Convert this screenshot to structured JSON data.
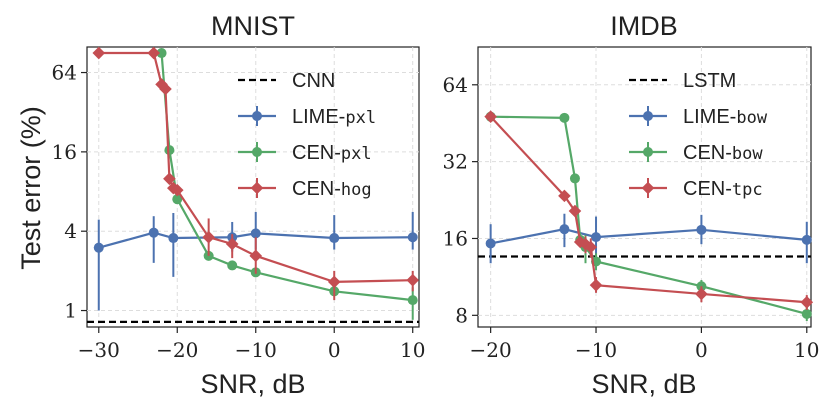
{
  "figure": {
    "ylabel_shared": "Test error (%)"
  },
  "chart_data": [
    {
      "type": "line",
      "title": "MNIST",
      "xlabel": "SNR, dB",
      "ylabel": "Test error (%)",
      "yscale": "log2",
      "xlim": [
        -31.5,
        10.8
      ],
      "ylim": [
        0.75,
        100
      ],
      "xticks": [
        -30,
        -20,
        -10,
        0,
        10
      ],
      "xtick_labels": [
        "−30",
        "−20",
        "−10",
        "0",
        "10"
      ],
      "yticks": [
        1,
        4,
        16,
        64
      ],
      "ytick_labels": [
        "1",
        "4",
        "16",
        "64"
      ],
      "grid": true,
      "legend_position": "top-right",
      "baseline": {
        "name": "CNN",
        "value": 0.82,
        "style": "dashed",
        "color": "#000000"
      },
      "series": [
        {
          "name_main": "LIME-",
          "name_code": "pxl",
          "color": "#4c72b0",
          "marker": "circle",
          "x": [
            -30,
            -23,
            -20.5,
            -13,
            -10,
            0,
            10
          ],
          "y": [
            3.0,
            3.9,
            3.55,
            3.6,
            3.85,
            3.55,
            3.6
          ],
          "err_low": [
            1.0,
            2.3,
            1.8,
            2.8,
            2.9,
            2.9,
            2.9
          ],
          "err_high": [
            4.9,
            5.2,
            5.5,
            4.7,
            5.6,
            5.3,
            5.6
          ]
        },
        {
          "name_main": "CEN-",
          "name_code": "pxl",
          "color": "#55a868",
          "marker": "circle",
          "x": [
            -22,
            -21,
            -20,
            -16,
            -13,
            -10,
            0,
            10
          ],
          "y": [
            90,
            16.5,
            7.0,
            2.6,
            2.2,
            1.95,
            1.4,
            1.2
          ],
          "err_low": [
            88,
            16,
            6.6,
            2.5,
            2.1,
            1.85,
            1.3,
            0.85
          ],
          "err_high": [
            92,
            17,
            7.4,
            2.8,
            2.3,
            2.05,
            1.5,
            1.5
          ]
        },
        {
          "name_main": "CEN-",
          "name_code": "hog",
          "color": "#c44e52",
          "marker": "diamond",
          "x": [
            -30,
            -23,
            -22,
            -21.5,
            -21,
            -20.5,
            -20,
            -16,
            -13,
            -10,
            0,
            10
          ],
          "y": [
            90,
            90,
            52,
            48,
            10.0,
            8.5,
            8.2,
            3.6,
            3.2,
            2.6,
            1.65,
            1.7
          ],
          "err_low": [
            null,
            null,
            null,
            null,
            null,
            null,
            null,
            2.6,
            2.5,
            1.9,
            1.2,
            1.4
          ],
          "err_high": [
            null,
            null,
            null,
            null,
            null,
            null,
            null,
            5.0,
            3.8,
            3.6,
            2.0,
            2.0
          ]
        }
      ]
    },
    {
      "type": "line",
      "title": "IMDB",
      "xlabel": "SNR, dB",
      "ylabel": "",
      "yscale": "log2",
      "xlim": [
        -21.2,
        10.4
      ],
      "ylim": [
        7.2,
        90
      ],
      "xticks": [
        -20,
        -10,
        0,
        10
      ],
      "xtick_labels": [
        "−20",
        "−10",
        "0",
        "10"
      ],
      "yticks": [
        8,
        16,
        32,
        64
      ],
      "ytick_labels": [
        "8",
        "16",
        "32",
        "64"
      ],
      "grid": true,
      "legend_position": "top-right",
      "baseline": {
        "name": "LSTM",
        "value": 13.6,
        "style": "dashed",
        "color": "#000000"
      },
      "series": [
        {
          "name_main": "LIME-",
          "name_code": "bow",
          "color": "#4c72b0",
          "marker": "circle",
          "x": [
            -20,
            -13,
            -10,
            0,
            10
          ],
          "y": [
            15.3,
            17.4,
            16.2,
            17.3,
            15.8
          ],
          "err_low": [
            12.8,
            14.8,
            13.0,
            15.2,
            12.8
          ],
          "err_high": [
            18.2,
            20.0,
            19.5,
            19.8,
            18.6
          ]
        },
        {
          "name_main": "CEN-",
          "name_code": "bow",
          "color": "#55a868",
          "marker": "circle",
          "x": [
            -20,
            -13,
            -12,
            -11.5,
            -11,
            -10,
            0,
            10
          ],
          "y": [
            48,
            47.5,
            27.5,
            15.8,
            14.8,
            13.0,
            10.4,
            8.1
          ],
          "err_low": [
            null,
            null,
            null,
            14.8,
            12.8,
            12.0,
            9.8,
            7.6
          ],
          "err_high": [
            null,
            null,
            null,
            16.8,
            16.5,
            14.0,
            11.0,
            8.6
          ]
        },
        {
          "name_main": "CEN-",
          "name_code": "tpc",
          "color": "#c44e52",
          "marker": "diamond",
          "x": [
            -20,
            -13,
            -12,
            -11.5,
            -11,
            -10.5,
            -10,
            0,
            10
          ],
          "y": [
            48,
            23.5,
            20.5,
            15.5,
            15.2,
            14.8,
            10.5,
            9.7,
            9.0
          ],
          "err_low": [
            null,
            null,
            null,
            null,
            14.0,
            13.5,
            9.8,
            9.0,
            8.4
          ],
          "err_high": [
            null,
            null,
            null,
            null,
            16.3,
            16.0,
            11.3,
            10.4,
            9.6
          ]
        }
      ]
    }
  ]
}
